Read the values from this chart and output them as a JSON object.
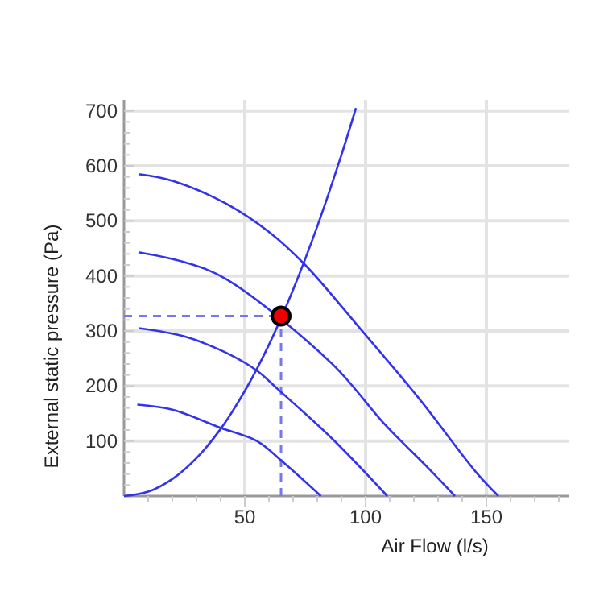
{
  "chart_data": {
    "type": "line",
    "xlabel": "Air Flow (l/s)",
    "ylabel": "External static pressure (Pa)",
    "xlim": [
      0,
      184
    ],
    "ylim": [
      0,
      720
    ],
    "xticks": [
      {
        "value": 10,
        "label": null
      },
      {
        "value": 20,
        "label": null
      },
      {
        "value": 30,
        "label": null
      },
      {
        "value": 40,
        "label": null
      },
      50,
      {
        "value": 60,
        "label": null
      },
      {
        "value": 70,
        "label": null
      },
      {
        "value": 80,
        "label": null
      },
      {
        "value": 90,
        "label": null
      },
      100,
      {
        "value": 110,
        "label": null
      },
      {
        "value": 120,
        "label": null
      },
      {
        "value": 130,
        "label": null
      },
      {
        "value": 140,
        "label": null
      },
      150,
      {
        "value": 160,
        "label": null
      },
      {
        "value": 170,
        "label": null
      },
      {
        "value": 180,
        "label": null
      }
    ],
    "yticks": [
      {
        "value": 20,
        "label": null
      },
      {
        "value": 40,
        "label": null
      },
      {
        "value": 60,
        "label": null
      },
      {
        "value": 80,
        "label": null
      },
      100,
      {
        "value": 120,
        "label": null
      },
      {
        "value": 140,
        "label": null
      },
      {
        "value": 160,
        "label": null
      },
      {
        "value": 180,
        "label": null
      },
      200,
      {
        "value": 220,
        "label": null
      },
      {
        "value": 240,
        "label": null
      },
      {
        "value": 260,
        "label": null
      },
      {
        "value": 280,
        "label": null
      },
      300,
      {
        "value": 320,
        "label": null
      },
      {
        "value": 340,
        "label": null
      },
      {
        "value": 360,
        "label": null
      },
      {
        "value": 380,
        "label": null
      },
      400,
      {
        "value": 420,
        "label": null
      },
      {
        "value": 440,
        "label": null
      },
      {
        "value": 460,
        "label": null
      },
      {
        "value": 480,
        "label": null
      },
      500,
      {
        "value": 520,
        "label": null
      },
      {
        "value": 540,
        "label": null
      },
      {
        "value": 560,
        "label": null
      },
      {
        "value": 580,
        "label": null
      },
      600,
      {
        "value": 620,
        "label": null
      },
      {
        "value": 640,
        "label": null
      },
      {
        "value": 660,
        "label": null
      },
      {
        "value": 680,
        "label": null
      },
      700
    ],
    "grid": true,
    "marker": "none",
    "line_style": "solid",
    "series": [
      {
        "color": "#3333ee",
        "x": [
          0,
          10,
          20,
          30,
          40,
          50,
          60,
          70,
          80,
          90,
          96
        ],
        "values": [
          0,
          8,
          31,
          69,
          122,
          191,
          275,
          375,
          490,
          620,
          705
        ]
      },
      {
        "color": "#3333ee",
        "x": [
          6,
          20,
          42,
          60,
          75,
          98,
          122,
          146,
          155
        ],
        "values": [
          585,
          573,
          532,
          480,
          420,
          303,
          178,
          42,
          0
        ]
      },
      {
        "color": "#3333ee",
        "x": [
          6,
          25,
          42,
          86,
          108,
          125,
          137
        ],
        "values": [
          443,
          425,
          395,
          241,
          130,
          55,
          0
        ]
      },
      {
        "color": "#3333ee",
        "x": [
          6,
          25,
          42,
          55,
          64,
          86,
          109
        ],
        "values": [
          305,
          290,
          261,
          228,
          193,
          105,
          0
        ]
      },
      {
        "color": "#3333ee",
        "x": [
          5.5,
          20,
          40,
          55,
          66,
          81.5
        ],
        "values": [
          166,
          157,
          124,
          100,
          61,
          0
        ]
      },
      {
        "type": "scatter",
        "marker": "circle",
        "color": "#ee0000",
        "x": [
          65
        ],
        "values": [
          327
        ]
      }
    ],
    "ref_lines": [
      {
        "axis": "x",
        "value": 65,
        "color": "#7777ee",
        "line_style": "dashed"
      },
      {
        "axis": "y",
        "value": 327,
        "color": "#7777ee",
        "line_style": "dashed"
      }
    ]
  }
}
